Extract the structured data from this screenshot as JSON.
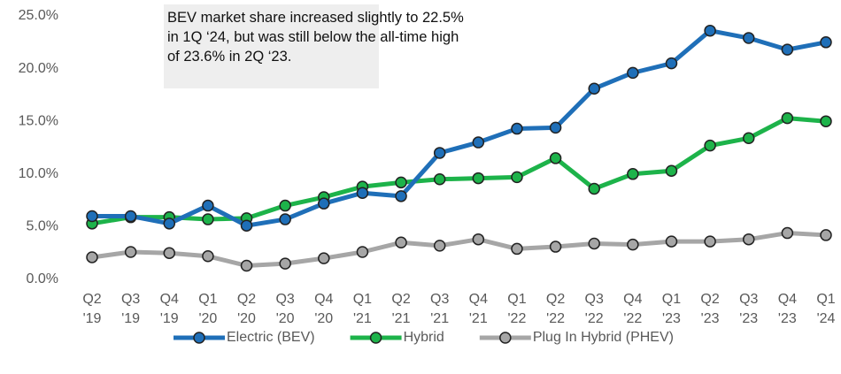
{
  "chart_data": {
    "type": "line",
    "annotation": [
      "BEV market share increased slightly to 22.5%",
      "in 1Q ‘24, but was still below the all-time high",
      "of 23.6% in 2Q ‘23."
    ],
    "categories": [
      "Q2 '19",
      "Q3 '19",
      "Q4 '19",
      "Q1 '20",
      "Q2 '20",
      "Q3 '20",
      "Q4 '20",
      "Q1 '21",
      "Q2 '21",
      "Q3 '21",
      "Q4 '21",
      "Q1 '22",
      "Q2 '22",
      "Q3 '22",
      "Q4 '22",
      "Q1 '23",
      "Q2 '23",
      "Q3 '23",
      "Q4 '23",
      "Q1 '24"
    ],
    "series": [
      {
        "name": "Electric (BEV)",
        "color": "#1f6fb8",
        "values": [
          6.0,
          6.0,
          5.3,
          7.0,
          5.1,
          5.7,
          7.2,
          8.2,
          7.9,
          12.0,
          13.0,
          14.3,
          14.4,
          18.1,
          19.6,
          20.5,
          23.6,
          22.9,
          21.8,
          22.5
        ]
      },
      {
        "name": "Hybrid",
        "color": "#1db34a",
        "values": [
          5.3,
          5.9,
          5.9,
          5.7,
          5.8,
          7.0,
          7.8,
          8.8,
          9.2,
          9.5,
          9.6,
          9.7,
          11.5,
          8.6,
          10.0,
          10.3,
          12.7,
          13.4,
          15.3,
          15.0
        ]
      },
      {
        "name": "Plug In Hybrid (PHEV)",
        "color": "#a6a6a6",
        "values": [
          2.1,
          2.6,
          2.5,
          2.2,
          1.3,
          1.5,
          2.0,
          2.6,
          3.5,
          3.2,
          3.8,
          2.9,
          3.1,
          3.4,
          3.3,
          3.6,
          3.6,
          3.8,
          4.4,
          4.2
        ]
      }
    ],
    "ylim": [
      0,
      25
    ],
    "yticks": [
      {
        "value": 0,
        "label": "0.0%"
      },
      {
        "value": 5,
        "label": "5.0%"
      },
      {
        "value": 10,
        "label": "10.0%"
      },
      {
        "value": 15,
        "label": "15.0%"
      },
      {
        "value": 20,
        "label": "20.0%"
      },
      {
        "value": 25,
        "label": "25.0%"
      }
    ],
    "grid": false,
    "legend": "bottom"
  }
}
